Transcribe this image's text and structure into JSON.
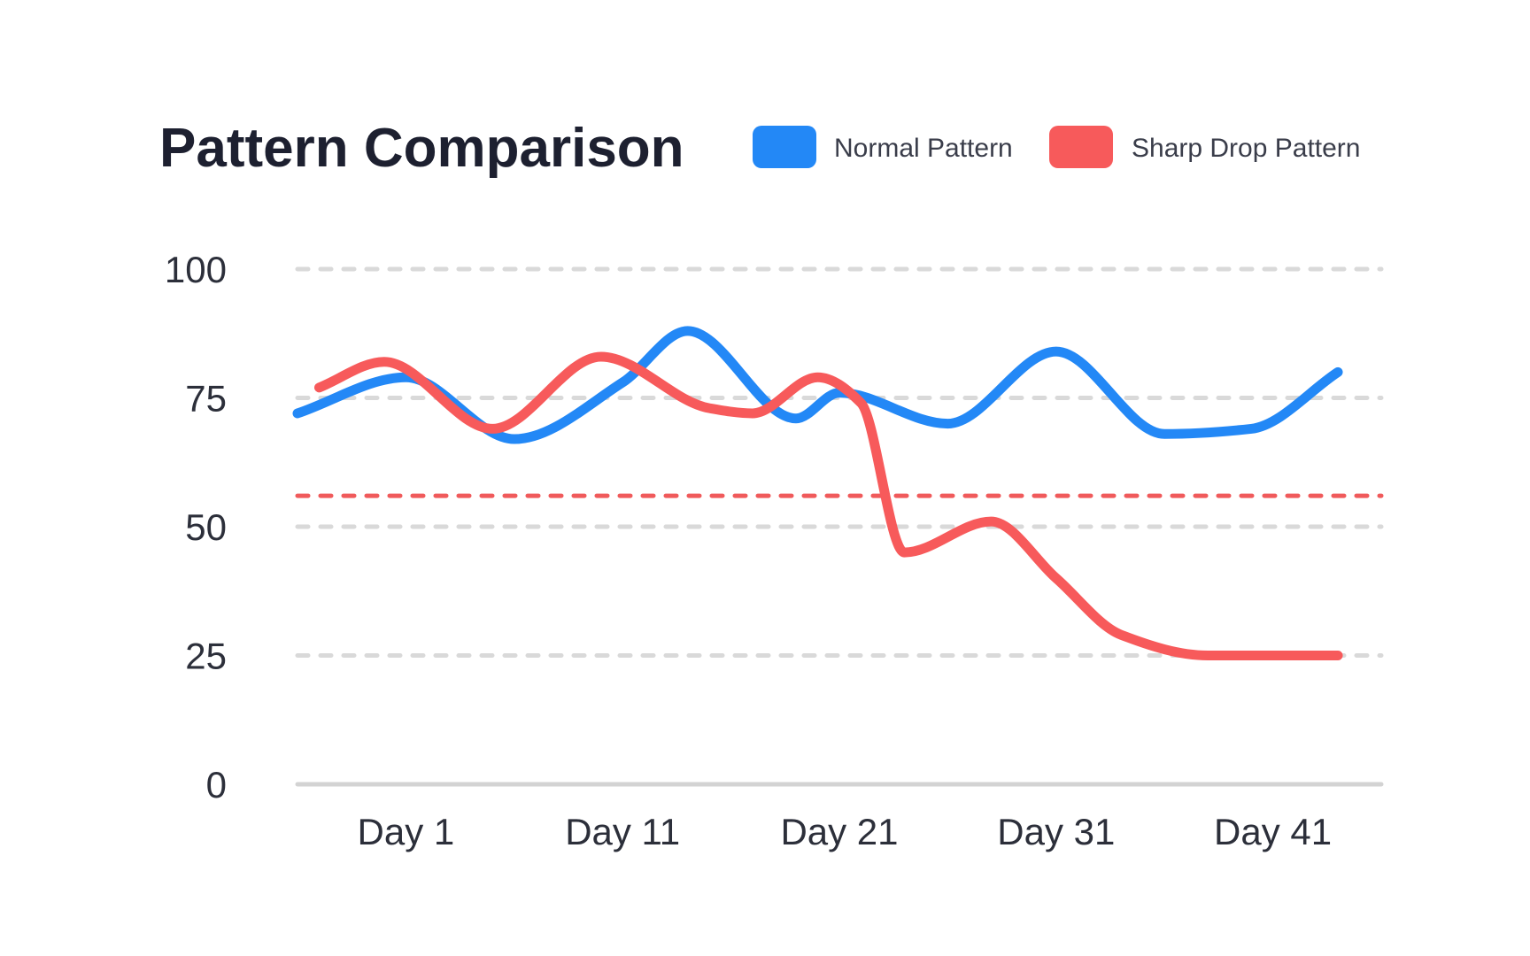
{
  "chart_data": {
    "type": "line",
    "title": "Pattern Comparison",
    "xlabel": "",
    "ylabel": "",
    "x_tick_labels": [
      "Day 1",
      "Day 11",
      "Day 21",
      "Day 31",
      "Day 41"
    ],
    "x_tick_days": [
      1,
      11,
      21,
      31,
      41
    ],
    "xlim": [
      -4,
      46
    ],
    "ylim": [
      0,
      100
    ],
    "y_ticks": [
      0,
      25,
      50,
      75,
      100
    ],
    "y_tick_labels": [
      "0",
      "25",
      "50",
      "75",
      "100"
    ],
    "grid": true,
    "legend_position": "top-right",
    "threshold": {
      "value": 56,
      "color": "#f05a5b",
      "style": "dashed"
    },
    "series": [
      {
        "name": "Normal Pattern",
        "color": "#2388f6",
        "x": [
          -4,
          1,
          6,
          11,
          14,
          19,
          21,
          26,
          31,
          36,
          40,
          44
        ],
        "values": [
          72,
          79,
          67,
          78,
          88,
          71,
          76,
          70,
          84,
          68,
          69,
          80
        ]
      },
      {
        "name": "Sharp Drop Pattern",
        "color": "#f75a5b",
        "x": [
          -3,
          0,
          5,
          10,
          15,
          17,
          20,
          22,
          24,
          28,
          31,
          34,
          38,
          42,
          44
        ],
        "values": [
          77,
          82,
          69,
          83,
          73,
          72,
          79,
          74,
          45,
          51,
          40,
          29,
          25,
          25,
          25
        ]
      }
    ]
  }
}
